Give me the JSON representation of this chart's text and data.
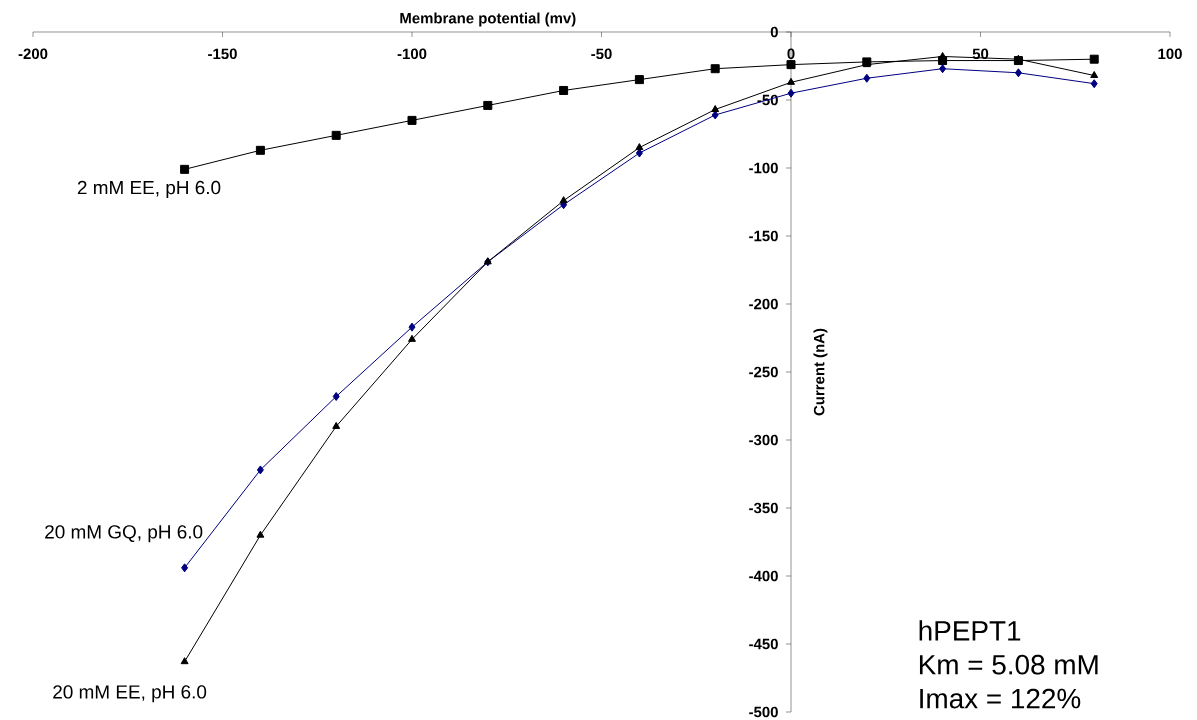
{
  "chart_data": {
    "type": "line",
    "xlabel": "Membrane potential (mv)",
    "ylabel": "Current (nA)",
    "x": [
      -160,
      -140,
      -120,
      -100,
      -80,
      -60,
      -40,
      -20,
      0,
      20,
      40,
      60,
      80
    ],
    "series": [
      {
        "name": "2 mM EE, pH 6.0",
        "color": "#000000",
        "marker": "square",
        "values": [
          -101,
          -87,
          -76,
          -65,
          -54,
          -43,
          -35,
          -27,
          -24,
          -22,
          -21,
          -21,
          -20
        ]
      },
      {
        "name": "20 mM GQ, pH 6.0",
        "color": "#000080",
        "marker": "diamond",
        "values": [
          -394,
          -322,
          -268,
          -217,
          -169,
          -127,
          -89,
          -61,
          -45,
          -34,
          -27,
          -30,
          -38
        ]
      },
      {
        "name": "20 mM EE, pH 6.0",
        "color": "#000000",
        "marker": "triangle",
        "values": [
          -463,
          -370,
          -290,
          -226,
          -169,
          -124,
          -85,
          -57,
          -37,
          -24,
          -18,
          -20,
          -32
        ]
      }
    ],
    "xlim": [
      -200,
      100
    ],
    "ylim": [
      -500,
      0
    ],
    "xticks": [
      -200,
      -150,
      -100,
      -50,
      0,
      50,
      100
    ],
    "yticks": [
      -500,
      -450,
      -400,
      -350,
      -300,
      -250,
      -200,
      -150,
      -100,
      -50,
      0
    ],
    "annotations": [
      "hPEPT1",
      "Km = 5.08 mM",
      "Imax = 122%"
    ]
  }
}
